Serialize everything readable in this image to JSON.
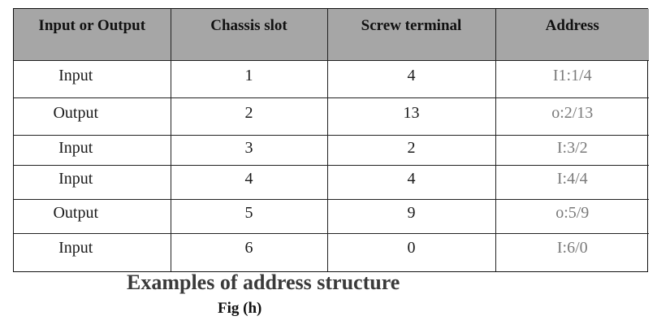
{
  "table": {
    "headers": [
      "Input or Output",
      "Chassis slot",
      "Screw terminal",
      "Address"
    ],
    "rows": [
      {
        "type": "Input",
        "slot": "1",
        "terminal": "4",
        "address": "I1:1/4"
      },
      {
        "type": "Output",
        "slot": "2",
        "terminal": "13",
        "address": "o:2/13"
      },
      {
        "type": "Input",
        "slot": "3",
        "terminal": "2",
        "address": "I:3/2"
      },
      {
        "type": "Input",
        "slot": "4",
        "terminal": "4",
        "address": "I:4/4"
      },
      {
        "type": "Output",
        "slot": "5",
        "terminal": "9",
        "address": "o:5/9"
      },
      {
        "type": "Input",
        "slot": "6",
        "terminal": "0",
        "address": "I:6/0"
      }
    ]
  },
  "caption": "Examples of address structure",
  "figure_label": "Fig (h)"
}
